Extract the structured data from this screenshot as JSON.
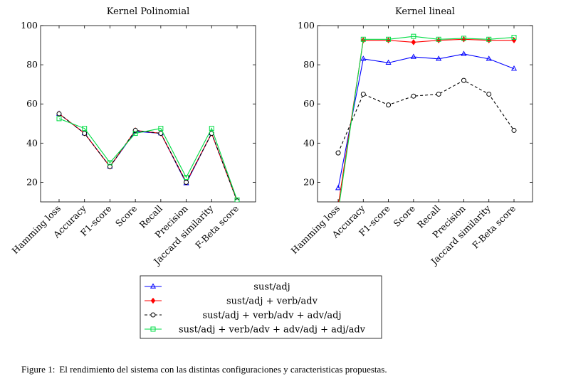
{
  "figure": {
    "label": "Figure 1:",
    "caption": "El rendimiento del sistema con las distintas configuraciones y caracteristicas propuestas."
  },
  "chart_data": [
    {
      "type": "line",
      "title": "Kernel Polinomial",
      "xlabel": "",
      "ylabel": "",
      "categories": [
        "Hamming loss",
        "Accuracy",
        "F1-score",
        "Score",
        "Recall",
        "Precision",
        "Jaccard similarity",
        "F-Beta score"
      ],
      "ylim": [
        10,
        100
      ],
      "yticks": [
        20,
        40,
        60,
        80,
        100
      ],
      "grid": false,
      "series": [
        {
          "name": "sust/adj",
          "color": "#0000ff",
          "marker": "triangle",
          "dash": false,
          "values": [
            55,
            45,
            28,
            46,
            45,
            19.5,
            45,
            10.5
          ]
        },
        {
          "name": "sust/adj + verb/adv",
          "color": "#ff0000",
          "marker": "diamond",
          "dash": false,
          "values": [
            55,
            45,
            28,
            46.5,
            45,
            20,
            45,
            10.5
          ]
        },
        {
          "name": "sust/adj + verb/adv + adv/adj",
          "color": "#000000",
          "marker": "circle",
          "dash": true,
          "values": [
            55,
            45,
            28,
            46.5,
            45,
            20,
            45,
            10.5
          ]
        },
        {
          "name": "sust/adj + verb/adv + adv/adj + adj/adv",
          "color": "#00dd44",
          "marker": "square",
          "dash": false,
          "values": [
            52.5,
            47.5,
            30,
            45,
            47.5,
            22.5,
            47.5,
            11
          ]
        }
      ]
    },
    {
      "type": "line",
      "title": "Kernel lineal",
      "xlabel": "",
      "ylabel": "",
      "categories": [
        "Hamming loss",
        "Accuracy",
        "F1-score",
        "Score",
        "Recall",
        "Precision",
        "Jaccard similarity",
        "F-Beta score"
      ],
      "ylim": [
        10,
        100
      ],
      "yticks": [
        20,
        40,
        60,
        80,
        100
      ],
      "grid": false,
      "series": [
        {
          "name": "sust/adj",
          "color": "#0000ff",
          "marker": "triangle",
          "dash": false,
          "values": [
            17,
            83,
            81,
            84,
            83,
            85.5,
            83,
            78
          ]
        },
        {
          "name": "sust/adj + verb/adv",
          "color": "#ff0000",
          "marker": "diamond",
          "dash": false,
          "values": [
            8,
            92.5,
            92.5,
            91.5,
            92.5,
            93,
            92.5,
            92.5
          ]
        },
        {
          "name": "sust/adj + verb/adv + adv/adj",
          "color": "#000000",
          "marker": "circle",
          "dash": true,
          "values": [
            35,
            65,
            59.5,
            64,
            65,
            72,
            65,
            46.5
          ]
        },
        {
          "name": "sust/adj + verb/adv + adv/adj + adj/adv",
          "color": "#00dd44",
          "marker": "square",
          "dash": false,
          "values": [
            5,
            93,
            93,
            94.5,
            93,
            93.5,
            93,
            94
          ]
        }
      ]
    }
  ],
  "legend": {
    "placement": "bottom-center",
    "entries": [
      "sust/adj",
      "sust/adj + verb/adv",
      "sust/adj + verb/adv + adv/adj",
      "sust/adj + verb/adv + adv/adj + adj/adv"
    ]
  }
}
